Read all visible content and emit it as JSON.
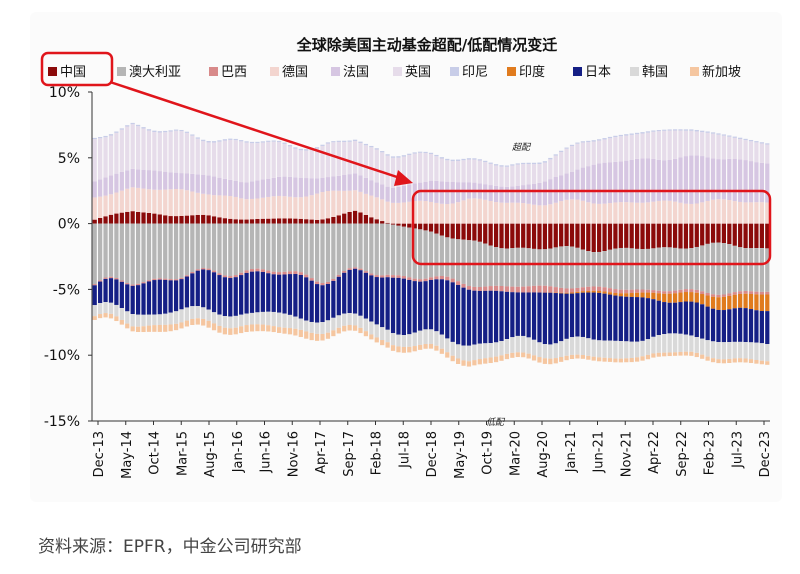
{
  "chart_data": {
    "type": "bar",
    "stacked": true,
    "title": "全球除美国主动基金超配/低配情况变迁",
    "ylim": [
      -15,
      10
    ],
    "yticks": [
      10,
      5,
      0,
      -5,
      -10,
      -15
    ],
    "ytick_labels": [
      "10%",
      "5%",
      "0%",
      "-5%",
      "-10%",
      "-15%"
    ],
    "xtick_labels": [
      "Dec-13",
      "May-14",
      "Oct-14",
      "Mar-15",
      "Aug-15",
      "Jan-16",
      "Jun-16",
      "Nov-16",
      "Apr-17",
      "Sep-17",
      "Feb-18",
      "Jul-18",
      "Dec-18",
      "May-19",
      "Oct-19",
      "Mar-20",
      "Aug-20",
      "Jan-21",
      "Jun-21",
      "Nov-21",
      "Apr-22",
      "Sep-22",
      "Feb-23",
      "Jul-23",
      "Dec-23"
    ],
    "grid": false,
    "legend_position": "top",
    "annotations": {
      "over": "超配",
      "under": "低配"
    },
    "series": [
      {
        "name": "中国",
        "color": "#8b0a0a",
        "anchors": [
          0.3,
          1.0,
          0.6,
          0.6,
          0.3,
          0.4,
          0.3,
          0.9,
          -0.1,
          -0.6,
          -1.4,
          -1.8,
          -1.9,
          -1.9,
          -2.0,
          -1.9,
          -1.7,
          -1.6,
          -1.9
        ]
      },
      {
        "name": "澳大利亚",
        "color": "#b5b5b5",
        "anchors": [
          -4.5,
          -4.5,
          -4.0,
          -3.8,
          -3.5,
          -3.7,
          -4.1,
          -3.7,
          -3.8,
          -3.5,
          -3.2,
          -3.0,
          -2.9,
          -2.9,
          -3.0,
          -3.1,
          -3.5,
          -3.6,
          -3.3
        ]
      },
      {
        "name": "巴西",
        "color": "#d88a8a",
        "anchors": [
          -0.1,
          -0.1,
          -0.1,
          -0.1,
          -0.2,
          -0.2,
          -0.2,
          -0.1,
          -0.2,
          -0.2,
          -0.3,
          -0.4,
          -0.5,
          -0.3,
          -0.3,
          -0.2,
          -0.2,
          -0.2,
          -0.2
        ]
      },
      {
        "name": "德国",
        "color": "#f3d5cf",
        "anchors": [
          1.6,
          1.8,
          1.9,
          1.8,
          1.5,
          1.7,
          1.9,
          1.7,
          1.6,
          1.6,
          1.8,
          1.6,
          1.5,
          1.7,
          1.6,
          1.6,
          1.7,
          1.7,
          1.6
        ]
      },
      {
        "name": "法国",
        "color": "#d6c6e2",
        "anchors": [
          1.3,
          1.4,
          1.4,
          1.3,
          1.3,
          1.5,
          1.2,
          1.2,
          1.1,
          1.7,
          1.3,
          1.2,
          1.6,
          2.6,
          3.1,
          3.4,
          3.3,
          3.3,
          3.0
        ]
      },
      {
        "name": "英国",
        "color": "#e6dcea",
        "anchors": [
          3.0,
          3.4,
          2.9,
          2.8,
          3.0,
          2.5,
          2.2,
          2.6,
          2.4,
          1.9,
          1.7,
          1.5,
          1.6,
          1.8,
          1.9,
          2.0,
          2.1,
          1.6,
          1.4
        ]
      },
      {
        "name": "印尼",
        "color": "#c8cde8",
        "anchors": [
          0.1,
          0.1,
          0.1,
          0.1,
          0.1,
          0.1,
          0.1,
          0.1,
          0.1,
          0.1,
          0.1,
          0.1,
          0.1,
          0.1,
          0.1,
          0.1,
          0.1,
          0.1,
          0.1
        ]
      },
      {
        "name": "印度",
        "color": "#e07b1e",
        "anchors": [
          0,
          0,
          0,
          0,
          0,
          0,
          0,
          0,
          0,
          0,
          0,
          0,
          0,
          -0.1,
          -0.2,
          -0.5,
          -0.8,
          -1.0,
          -1.2
        ]
      },
      {
        "name": "日本",
        "color": "#151f85",
        "anchors": [
          -1.6,
          -2.2,
          -2.5,
          -2.8,
          -3.0,
          -3.2,
          -2.8,
          -3.4,
          -3.9,
          -4.2,
          -4.2,
          -3.7,
          -3.5,
          -3.6,
          -3.5,
          -2.8,
          -2.4,
          -2.5,
          -2.7
        ]
      },
      {
        "name": "韩国",
        "color": "#d9d9d9",
        "anchors": [
          -0.8,
          -0.9,
          -0.9,
          -0.9,
          -0.9,
          -1.0,
          -0.9,
          -0.9,
          -1.0,
          -1.0,
          -1.2,
          -1.1,
          -1.2,
          -1.3,
          -1.3,
          -1.3,
          -1.3,
          -1.3,
          -1.2
        ]
      },
      {
        "name": "新加坡",
        "color": "#f5c6a0",
        "anchors": [
          -0.3,
          -0.4,
          -0.5,
          -0.5,
          -0.5,
          -0.5,
          -0.5,
          -0.4,
          -0.4,
          -0.4,
          -0.4,
          -0.4,
          -0.4,
          -0.3,
          -0.3,
          -0.3,
          -0.3,
          -0.3,
          -0.3
        ]
      }
    ]
  },
  "source": "资料来源：EPFR，中金公司研究部"
}
